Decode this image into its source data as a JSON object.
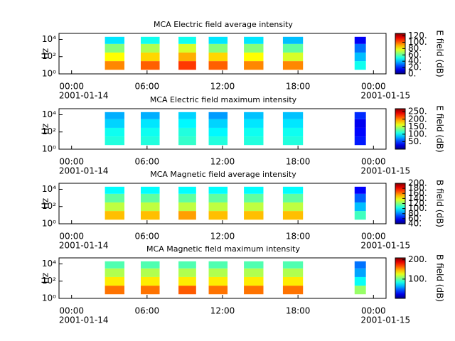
{
  "chart_data": [
    {
      "type": "spectrogram",
      "title": "MCA  Electric field average intensity",
      "ylabel": "Hz",
      "colorbar_label": "E field (dB)",
      "colormap": "jet",
      "log_y": true,
      "xlim": [
        -1,
        25
      ],
      "xticks": [
        {
          "value": 0,
          "label": "00:00"
        },
        {
          "value": 6,
          "label": "06:00"
        },
        {
          "value": 12,
          "label": "12:00"
        },
        {
          "value": 18,
          "label": "18:00"
        },
        {
          "value": 24,
          "label": "00:00"
        }
      ],
      "x_date_labels": [
        {
          "value": 0,
          "label": "2001-01-14"
        },
        {
          "value": 24,
          "label": "2001-01-15"
        }
      ],
      "ylim": [
        1,
        50000
      ],
      "yticks": [
        {
          "value": 1,
          "label": "10⁰"
        },
        {
          "value": 100,
          "label": "10²"
        },
        {
          "value": 10000,
          "label": "10⁴"
        }
      ],
      "freq_bands": [
        3,
        30,
        300,
        3000,
        20000
      ],
      "clim": [
        0,
        128
      ],
      "cticks": [
        {
          "value": 0,
          "label": "0."
        },
        {
          "value": 20,
          "label": "20."
        },
        {
          "value": 40,
          "label": "40."
        },
        {
          "value": 60,
          "label": "60."
        },
        {
          "value": 80,
          "label": "80."
        },
        {
          "value": 100,
          "label": "100."
        },
        {
          "value": 120,
          "label": "120."
        }
      ],
      "blocks": [
        {
          "start": 2.65,
          "end": 4.2,
          "values": [
            95,
            80,
            65,
            45
          ]
        },
        {
          "start": 5.5,
          "end": 7.0,
          "values": [
            100,
            85,
            70,
            50
          ]
        },
        {
          "start": 8.5,
          "end": 9.9,
          "values": [
            105,
            90,
            75,
            50
          ]
        },
        {
          "start": 10.9,
          "end": 12.4,
          "values": [
            100,
            85,
            65,
            45
          ]
        },
        {
          "start": 13.7,
          "end": 15.25,
          "values": [
            95,
            80,
            65,
            45
          ]
        },
        {
          "start": 16.8,
          "end": 18.4,
          "values": [
            95,
            75,
            60,
            40
          ]
        },
        {
          "start": 22.5,
          "end": 23.4,
          "values": [
            50,
            40,
            30,
            15
          ]
        }
      ]
    },
    {
      "type": "spectrogram",
      "title": "MCA  Electric field maximum intensity",
      "ylabel": "Hz",
      "colorbar_label": "E field (dB)",
      "colormap": "jet",
      "log_y": true,
      "xlim": [
        -1,
        25
      ],
      "xticks": [
        {
          "value": 0,
          "label": "00:00"
        },
        {
          "value": 6,
          "label": "06:00"
        },
        {
          "value": 12,
          "label": "12:00"
        },
        {
          "value": 18,
          "label": "18:00"
        },
        {
          "value": 24,
          "label": "00:00"
        }
      ],
      "x_date_labels": [
        {
          "value": 0,
          "label": "2001-01-14"
        },
        {
          "value": 24,
          "label": "2001-01-15"
        }
      ],
      "ylim": [
        1,
        50000
      ],
      "yticks": [
        {
          "value": 1,
          "label": "10⁰"
        },
        {
          "value": 100,
          "label": "10²"
        },
        {
          "value": 10000,
          "label": "10⁴"
        }
      ],
      "freq_bands": [
        3,
        30,
        300,
        3000,
        20000
      ],
      "clim": [
        0,
        270
      ],
      "cticks": [
        {
          "value": 50,
          "label": "50."
        },
        {
          "value": 100,
          "label": "100."
        },
        {
          "value": 150,
          "label": "150."
        },
        {
          "value": 200,
          "label": "200."
        },
        {
          "value": 250,
          "label": "250."
        }
      ],
      "blocks": [
        {
          "start": 2.65,
          "end": 4.2,
          "values": [
            110,
            105,
            90,
            80
          ]
        },
        {
          "start": 5.5,
          "end": 7.0,
          "values": [
            110,
            105,
            95,
            80
          ]
        },
        {
          "start": 8.5,
          "end": 9.9,
          "values": [
            115,
            110,
            100,
            90
          ]
        },
        {
          "start": 10.9,
          "end": 12.4,
          "values": [
            110,
            100,
            90,
            75
          ]
        },
        {
          "start": 13.7,
          "end": 15.25,
          "values": [
            110,
            105,
            95,
            85
          ]
        },
        {
          "start": 16.8,
          "end": 18.4,
          "values": [
            110,
            105,
            95,
            85
          ]
        },
        {
          "start": 22.5,
          "end": 23.4,
          "values": [
            40,
            35,
            30,
            45
          ]
        }
      ]
    },
    {
      "type": "spectrogram",
      "title": "MCA  Magnetic field average intensity",
      "ylabel": "Hz",
      "colorbar_label": "B field (dB)",
      "colormap": "jet",
      "log_y": true,
      "xlim": [
        -1,
        25
      ],
      "xticks": [
        {
          "value": 0,
          "label": "00:00"
        },
        {
          "value": 6,
          "label": "06:00"
        },
        {
          "value": 12,
          "label": "12:00"
        },
        {
          "value": 18,
          "label": "18:00"
        },
        {
          "value": 24,
          "label": "00:00"
        }
      ],
      "x_date_labels": [
        {
          "value": 0,
          "label": "2001-01-14"
        },
        {
          "value": 24,
          "label": "2001-01-15"
        }
      ],
      "ylim": [
        1,
        50000
      ],
      "yticks": [
        {
          "value": 1,
          "label": "10⁰"
        },
        {
          "value": 100,
          "label": "10²"
        },
        {
          "value": 10000,
          "label": "10⁴"
        }
      ],
      "freq_bands": [
        3,
        30,
        300,
        3000,
        20000
      ],
      "clim": [
        40,
        200
      ],
      "cticks": [
        {
          "value": 40,
          "label": "40."
        },
        {
          "value": 60,
          "label": "60."
        },
        {
          "value": 80,
          "label": "80."
        },
        {
          "value": 100,
          "label": "100."
        },
        {
          "value": 120,
          "label": "120."
        },
        {
          "value": 140,
          "label": "140."
        },
        {
          "value": 160,
          "label": "160."
        },
        {
          "value": 180,
          "label": "180."
        },
        {
          "value": 200,
          "label": "200."
        }
      ],
      "blocks": [
        {
          "start": 2.65,
          "end": 4.2,
          "values": [
            150,
            130,
            115,
            100
          ]
        },
        {
          "start": 5.5,
          "end": 7.0,
          "values": [
            150,
            130,
            115,
            100
          ]
        },
        {
          "start": 8.5,
          "end": 9.9,
          "values": [
            155,
            130,
            115,
            100
          ]
        },
        {
          "start": 10.9,
          "end": 12.4,
          "values": [
            150,
            130,
            115,
            100
          ]
        },
        {
          "start": 13.7,
          "end": 15.25,
          "values": [
            150,
            130,
            115,
            100
          ]
        },
        {
          "start": 16.8,
          "end": 18.4,
          "values": [
            150,
            130,
            115,
            100
          ]
        },
        {
          "start": 22.5,
          "end": 23.4,
          "values": [
            110,
            90,
            75,
            60
          ]
        }
      ]
    },
    {
      "type": "spectrogram",
      "title": "MCA  Magnetic field maximum intensity",
      "ylabel": "Hz",
      "colorbar_label": "B field (dB)",
      "colormap": "jet",
      "log_y": true,
      "xlim": [
        -1,
        25
      ],
      "xticks": [
        {
          "value": 0,
          "label": "00:00"
        },
        {
          "value": 6,
          "label": "06:00"
        },
        {
          "value": 12,
          "label": "12:00"
        },
        {
          "value": 18,
          "label": "18:00"
        },
        {
          "value": 24,
          "label": "00:00"
        }
      ],
      "x_date_labels": [
        {
          "value": 0,
          "label": "2001-01-14"
        },
        {
          "value": 24,
          "label": "2001-01-15"
        }
      ],
      "ylim": [
        1,
        50000
      ],
      "yticks": [
        {
          "value": 1,
          "label": "10⁰"
        },
        {
          "value": 100,
          "label": "10²"
        },
        {
          "value": 10000,
          "label": "10⁴"
        }
      ],
      "freq_bands": [
        3,
        30,
        300,
        3000,
        20000
      ],
      "clim": [
        0,
        210
      ],
      "cticks": [
        {
          "value": 100,
          "label": "100."
        },
        {
          "value": 200,
          "label": "200."
        }
      ],
      "blocks": [
        {
          "start": 2.65,
          "end": 4.2,
          "values": [
            160,
            135,
            115,
            95
          ]
        },
        {
          "start": 5.5,
          "end": 7.0,
          "values": [
            160,
            135,
            115,
            95
          ]
        },
        {
          "start": 8.5,
          "end": 9.9,
          "values": [
            165,
            135,
            115,
            95
          ]
        },
        {
          "start": 10.9,
          "end": 12.4,
          "values": [
            160,
            135,
            115,
            95
          ]
        },
        {
          "start": 13.7,
          "end": 15.25,
          "values": [
            160,
            135,
            115,
            95
          ]
        },
        {
          "start": 16.8,
          "end": 18.4,
          "values": [
            160,
            135,
            115,
            95
          ]
        },
        {
          "start": 22.5,
          "end": 23.4,
          "values": [
            110,
            80,
            60,
            50
          ]
        }
      ]
    }
  ]
}
